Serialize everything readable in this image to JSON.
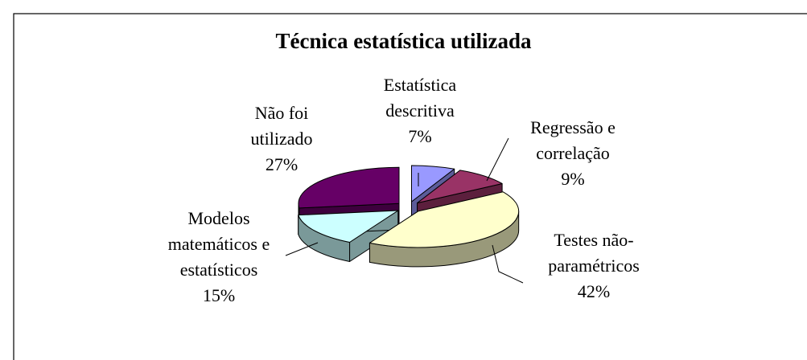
{
  "chart_data": {
    "type": "pie3d",
    "title": "Técnica estatística utilizada",
    "categories": [
      "Estatística descritiva",
      "Regressão e correlação",
      "Testes não-paramétricos",
      "Modelos matemáticos e estatísticos",
      "Não foi utilizado"
    ],
    "values": [
      7,
      9,
      42,
      15,
      27
    ],
    "value_labels": [
      "7%",
      "9%",
      "42%",
      "15%",
      "27%"
    ],
    "colors": [
      "#9999ff",
      "#993366",
      "#ffffcc",
      "#ccffff",
      "#660066"
    ]
  }
}
